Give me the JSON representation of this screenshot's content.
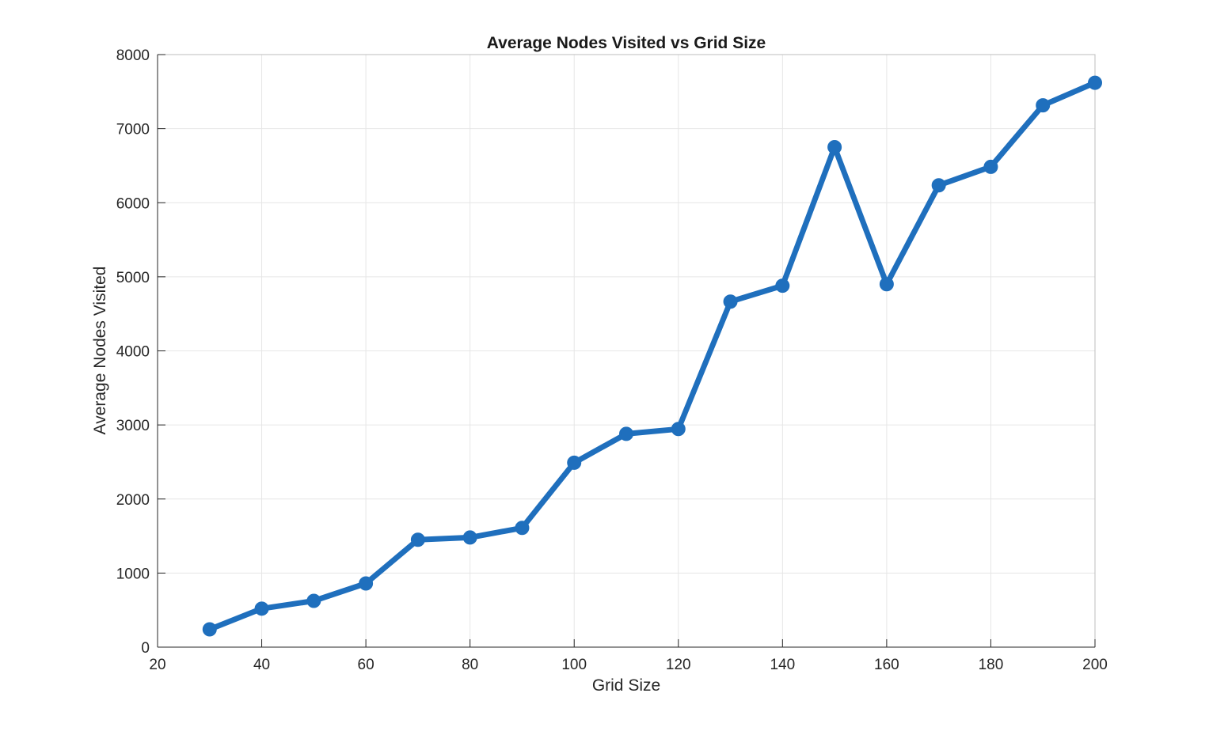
{
  "chart_data": {
    "type": "line",
    "title": "Average Nodes Visited vs Grid Size",
    "xlabel": "Grid Size",
    "ylabel": "Average Nodes Visited",
    "xlim": [
      20,
      200
    ],
    "ylim": [
      0,
      8000
    ],
    "xticks": [
      20,
      40,
      60,
      80,
      100,
      120,
      140,
      160,
      180,
      200
    ],
    "yticks": [
      0,
      1000,
      2000,
      3000,
      4000,
      5000,
      6000,
      7000,
      8000
    ],
    "grid": true,
    "series": [
      {
        "color": "#1f6fbd",
        "marker": "circle",
        "x": [
          30,
          40,
          50,
          60,
          70,
          80,
          90,
          100,
          110,
          120,
          130,
          140,
          150,
          160,
          170,
          180,
          190,
          200
        ],
        "y": [
          240,
          520,
          625,
          860,
          1450,
          1480,
          1610,
          2490,
          2880,
          2945,
          4665,
          4880,
          6750,
          4900,
          6235,
          6485,
          7315,
          7620
        ]
      }
    ]
  }
}
